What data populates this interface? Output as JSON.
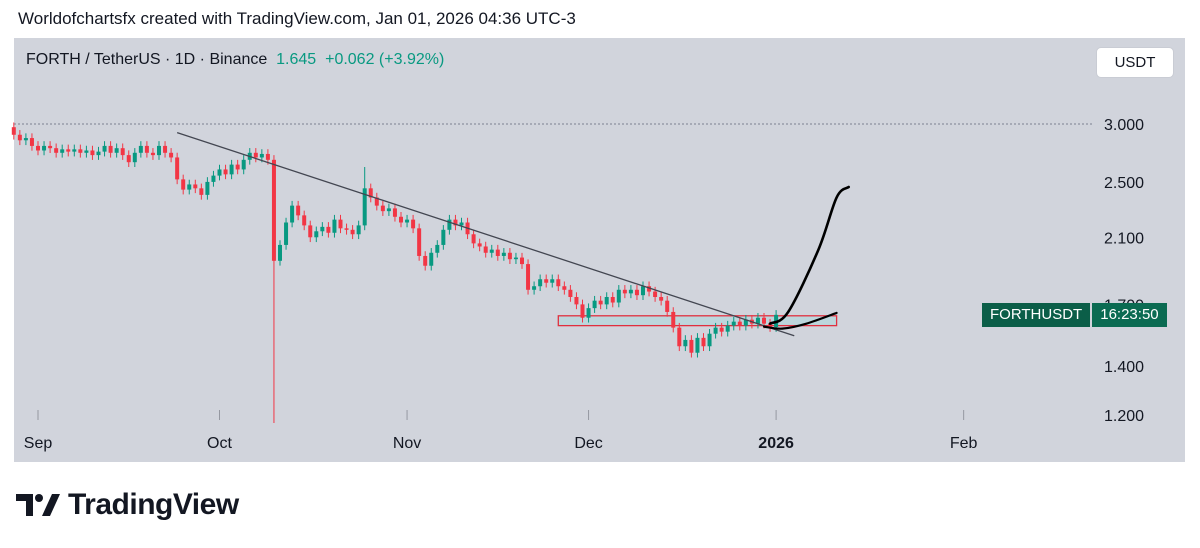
{
  "header": {
    "credit": "Worldofchartsfx created with TradingView.com, Jan 01, 2026 04:36 UTC-3"
  },
  "symbol": {
    "name": "FORTH / TetherUS · 1D · Binance",
    "price": "1.645",
    "change": "+0.062 (+3.92%)"
  },
  "currency_button": "USDT",
  "price_badge": {
    "ticker": "FORTHUSDT",
    "countdown": "16:23:50"
  },
  "footer": {
    "logo_text": "TradingView"
  },
  "colors": {
    "up": "#089981",
    "down": "#f23645",
    "trendline": "#434651",
    "projection": "#000000",
    "zone_fill": "#b9d6dc",
    "zone_border": "#e0303f",
    "panel_bg": "#d1d4dc"
  },
  "chart_data": {
    "type": "candlestick",
    "y_scale": "log",
    "y_ticks": [
      "3.000",
      "2.500",
      "2.100",
      "1.700",
      "1.400",
      "1.200"
    ],
    "x_ticks": [
      "Sep",
      "Oct",
      "Nov",
      "Dec",
      "2026",
      "Feb"
    ],
    "last_price": 1.645,
    "reference_level": 3.0,
    "trendline": {
      "start": {
        "date": "2025-09-24",
        "price": 2.92
      },
      "end": {
        "date": "2026-01-04",
        "price": 1.54
      }
    },
    "support_zone": {
      "from_date": "2025-11-26",
      "to_date": "2026-01-11",
      "low": 1.59,
      "high": 1.64
    },
    "projection_paths": [
      {
        "name": "",
        "points": [
          [
            "2025-12-31",
            1.6
          ],
          [
            "2026-01-03",
            1.66
          ],
          [
            "2026-01-08",
            2.02
          ],
          [
            "2026-01-11",
            2.38
          ],
          [
            "2026-01-13",
            2.46
          ]
        ]
      },
      {
        "name": "",
        "points": [
          [
            "2025-12-30",
            1.585
          ],
          [
            "2026-01-02",
            1.575
          ],
          [
            "2026-01-06",
            1.6
          ],
          [
            "2026-01-11",
            1.655
          ]
        ]
      }
    ],
    "daily_closes_note": "",
    "candles": [
      {
        "d": "2025-08-28",
        "o": 2.97,
        "c": 2.9
      },
      {
        "d": "2025-08-29",
        "o": 2.9,
        "c": 2.85
      },
      {
        "d": "2025-08-30",
        "o": 2.85,
        "c": 2.87
      },
      {
        "d": "2025-08-31",
        "o": 2.87,
        "c": 2.8
      },
      {
        "d": "2025-09-01",
        "o": 2.8,
        "c": 2.76
      },
      {
        "d": "2025-09-02",
        "o": 2.76,
        "c": 2.8
      },
      {
        "d": "2025-09-03",
        "o": 2.8,
        "c": 2.78
      },
      {
        "d": "2025-09-04",
        "o": 2.78,
        "c": 2.74
      },
      {
        "d": "2025-09-05",
        "o": 2.74,
        "c": 2.77
      },
      {
        "d": "2025-09-06",
        "o": 2.77,
        "c": 2.75
      },
      {
        "d": "2025-09-07",
        "o": 2.75,
        "c": 2.77
      },
      {
        "d": "2025-09-08",
        "o": 2.77,
        "c": 2.74
      },
      {
        "d": "2025-09-09",
        "o": 2.74,
        "c": 2.76
      },
      {
        "d": "2025-09-10",
        "o": 2.76,
        "c": 2.72
      },
      {
        "d": "2025-09-11",
        "o": 2.72,
        "c": 2.75
      },
      {
        "d": "2025-09-12",
        "o": 2.75,
        "c": 2.8
      },
      {
        "d": "2025-09-13",
        "o": 2.8,
        "c": 2.74
      },
      {
        "d": "2025-09-14",
        "o": 2.74,
        "c": 2.78
      },
      {
        "d": "2025-09-15",
        "o": 2.78,
        "c": 2.72
      },
      {
        "d": "2025-09-16",
        "o": 2.72,
        "c": 2.66
      },
      {
        "d": "2025-09-17",
        "o": 2.66,
        "c": 2.74
      },
      {
        "d": "2025-09-18",
        "o": 2.74,
        "c": 2.8
      },
      {
        "d": "2025-09-19",
        "o": 2.8,
        "c": 2.74
      },
      {
        "d": "2025-09-20",
        "o": 2.74,
        "c": 2.72
      },
      {
        "d": "2025-09-21",
        "o": 2.72,
        "c": 2.8
      },
      {
        "d": "2025-09-22",
        "o": 2.8,
        "c": 2.74
      },
      {
        "d": "2025-09-23",
        "o": 2.74,
        "c": 2.7
      },
      {
        "d": "2025-09-24",
        "o": 2.7,
        "c": 2.52
      },
      {
        "d": "2025-09-25",
        "o": 2.52,
        "c": 2.44
      },
      {
        "d": "2025-09-26",
        "o": 2.44,
        "c": 2.48
      },
      {
        "d": "2025-09-27",
        "o": 2.48,
        "c": 2.45
      },
      {
        "d": "2025-09-28",
        "o": 2.45,
        "c": 2.4
      },
      {
        "d": "2025-09-29",
        "o": 2.4,
        "c": 2.5
      },
      {
        "d": "2025-09-30",
        "o": 2.5,
        "c": 2.55
      },
      {
        "d": "2025-10-01",
        "o": 2.55,
        "c": 2.6
      },
      {
        "d": "2025-10-02",
        "o": 2.6,
        "c": 2.56
      },
      {
        "d": "2025-10-03",
        "o": 2.56,
        "c": 2.64
      },
      {
        "d": "2025-10-04",
        "o": 2.64,
        "c": 2.6
      },
      {
        "d": "2025-10-05",
        "o": 2.6,
        "c": 2.68
      },
      {
        "d": "2025-10-06",
        "o": 2.68,
        "c": 2.74
      },
      {
        "d": "2025-10-07",
        "o": 2.74,
        "c": 2.7
      },
      {
        "d": "2025-10-08",
        "o": 2.7,
        "c": 2.73
      },
      {
        "d": "2025-10-09",
        "o": 2.73,
        "c": 2.68
      },
      {
        "d": "2025-10-10",
        "o": 2.68,
        "c": 1.95,
        "l": 1.17
      },
      {
        "d": "2025-10-11",
        "o": 1.95,
        "c": 2.05
      },
      {
        "d": "2025-10-12",
        "o": 2.05,
        "c": 2.2
      },
      {
        "d": "2025-10-13",
        "o": 2.2,
        "c": 2.32
      },
      {
        "d": "2025-10-14",
        "o": 2.32,
        "c": 2.25
      },
      {
        "d": "2025-10-15",
        "o": 2.25,
        "c": 2.18
      },
      {
        "d": "2025-10-16",
        "o": 2.18,
        "c": 2.1
      },
      {
        "d": "2025-10-17",
        "o": 2.1,
        "c": 2.14
      },
      {
        "d": "2025-10-18",
        "o": 2.14,
        "c": 2.17
      },
      {
        "d": "2025-10-19",
        "o": 2.17,
        "c": 2.13
      },
      {
        "d": "2025-10-20",
        "o": 2.13,
        "c": 2.22
      },
      {
        "d": "2025-10-21",
        "o": 2.22,
        "c": 2.16
      },
      {
        "d": "2025-10-22",
        "o": 2.16,
        "c": 2.15
      },
      {
        "d": "2025-10-23",
        "o": 2.15,
        "c": 2.12
      },
      {
        "d": "2025-10-24",
        "o": 2.12,
        "c": 2.18
      },
      {
        "d": "2025-10-25",
        "o": 2.18,
        "c": 2.45,
        "h": 2.62
      },
      {
        "d": "2025-10-26",
        "o": 2.45,
        "c": 2.38
      },
      {
        "d": "2025-10-27",
        "o": 2.38,
        "c": 2.32
      },
      {
        "d": "2025-10-28",
        "o": 2.32,
        "c": 2.28
      },
      {
        "d": "2025-10-29",
        "o": 2.28,
        "c": 2.3
      },
      {
        "d": "2025-10-30",
        "o": 2.3,
        "c": 2.24
      },
      {
        "d": "2025-10-31",
        "o": 2.24,
        "c": 2.2
      },
      {
        "d": "2025-11-01",
        "o": 2.2,
        "c": 2.22
      },
      {
        "d": "2025-11-02",
        "o": 2.22,
        "c": 2.16
      },
      {
        "d": "2025-11-03",
        "o": 2.16,
        "c": 1.98
      },
      {
        "d": "2025-11-04",
        "o": 1.98,
        "c": 1.92
      },
      {
        "d": "2025-11-05",
        "o": 1.92,
        "c": 2.0
      },
      {
        "d": "2025-11-06",
        "o": 2.0,
        "c": 2.05
      },
      {
        "d": "2025-11-07",
        "o": 2.05,
        "c": 2.15
      },
      {
        "d": "2025-11-08",
        "o": 2.15,
        "c": 2.22
      },
      {
        "d": "2025-11-09",
        "o": 2.22,
        "c": 2.18
      },
      {
        "d": "2025-11-10",
        "o": 2.18,
        "c": 2.2
      },
      {
        "d": "2025-11-11",
        "o": 2.2,
        "c": 2.12
      },
      {
        "d": "2025-11-12",
        "o": 2.12,
        "c": 2.06
      },
      {
        "d": "2025-11-13",
        "o": 2.06,
        "c": 2.04
      },
      {
        "d": "2025-11-14",
        "o": 2.04,
        "c": 2.0
      },
      {
        "d": "2025-11-15",
        "o": 2.0,
        "c": 2.02
      },
      {
        "d": "2025-11-16",
        "o": 2.02,
        "c": 1.98
      },
      {
        "d": "2025-11-17",
        "o": 1.98,
        "c": 2.0
      },
      {
        "d": "2025-11-18",
        "o": 2.0,
        "c": 1.96
      },
      {
        "d": "2025-11-19",
        "o": 1.96,
        "c": 1.97
      },
      {
        "d": "2025-11-20",
        "o": 1.97,
        "c": 1.93
      },
      {
        "d": "2025-11-21",
        "o": 1.93,
        "c": 1.78
      },
      {
        "d": "2025-11-22",
        "o": 1.78,
        "c": 1.8
      },
      {
        "d": "2025-11-23",
        "o": 1.8,
        "c": 1.84
      },
      {
        "d": "2025-11-24",
        "o": 1.84,
        "c": 1.82
      },
      {
        "d": "2025-11-25",
        "o": 1.82,
        "c": 1.84
      },
      {
        "d": "2025-11-26",
        "o": 1.84,
        "c": 1.8
      },
      {
        "d": "2025-11-27",
        "o": 1.8,
        "c": 1.78
      },
      {
        "d": "2025-11-28",
        "o": 1.78,
        "c": 1.74
      },
      {
        "d": "2025-11-29",
        "o": 1.74,
        "c": 1.7
      },
      {
        "d": "2025-11-30",
        "o": 1.7,
        "c": 1.63
      },
      {
        "d": "2025-12-01",
        "o": 1.63,
        "c": 1.68
      },
      {
        "d": "2025-12-02",
        "o": 1.68,
        "c": 1.72
      },
      {
        "d": "2025-12-03",
        "o": 1.72,
        "c": 1.7
      },
      {
        "d": "2025-12-04",
        "o": 1.7,
        "c": 1.74
      },
      {
        "d": "2025-12-05",
        "o": 1.74,
        "c": 1.71
      },
      {
        "d": "2025-12-06",
        "o": 1.71,
        "c": 1.78
      },
      {
        "d": "2025-12-07",
        "o": 1.78,
        "c": 1.76
      },
      {
        "d": "2025-12-08",
        "o": 1.76,
        "c": 1.78
      },
      {
        "d": "2025-12-09",
        "o": 1.78,
        "c": 1.75
      },
      {
        "d": "2025-12-10",
        "o": 1.75,
        "c": 1.8
      },
      {
        "d": "2025-12-11",
        "o": 1.8,
        "c": 1.77
      },
      {
        "d": "2025-12-12",
        "o": 1.77,
        "c": 1.74
      },
      {
        "d": "2025-12-13",
        "o": 1.74,
        "c": 1.72
      },
      {
        "d": "2025-12-14",
        "o": 1.72,
        "c": 1.66
      },
      {
        "d": "2025-12-15",
        "o": 1.66,
        "c": 1.58
      },
      {
        "d": "2025-12-16",
        "o": 1.58,
        "c": 1.49
      },
      {
        "d": "2025-12-17",
        "o": 1.49,
        "c": 1.52
      },
      {
        "d": "2025-12-18",
        "o": 1.52,
        "c": 1.46
      },
      {
        "d": "2025-12-19",
        "o": 1.46,
        "c": 1.53
      },
      {
        "d": "2025-12-20",
        "o": 1.53,
        "c": 1.49
      },
      {
        "d": "2025-12-21",
        "o": 1.49,
        "c": 1.55
      },
      {
        "d": "2025-12-22",
        "o": 1.55,
        "c": 1.58
      },
      {
        "d": "2025-12-23",
        "o": 1.58,
        "c": 1.56
      },
      {
        "d": "2025-12-24",
        "o": 1.56,
        "c": 1.59
      },
      {
        "d": "2025-12-25",
        "o": 1.59,
        "c": 1.61
      },
      {
        "d": "2025-12-26",
        "o": 1.61,
        "c": 1.59
      },
      {
        "d": "2025-12-27",
        "o": 1.59,
        "c": 1.62
      },
      {
        "d": "2025-12-28",
        "o": 1.62,
        "c": 1.6
      },
      {
        "d": "2025-12-29",
        "o": 1.6,
        "c": 1.63
      },
      {
        "d": "2025-12-30",
        "o": 1.63,
        "c": 1.6
      },
      {
        "d": "2025-12-31",
        "o": 1.6,
        "c": 1.583
      },
      {
        "d": "2026-01-01",
        "o": 1.583,
        "c": 1.645
      }
    ]
  }
}
